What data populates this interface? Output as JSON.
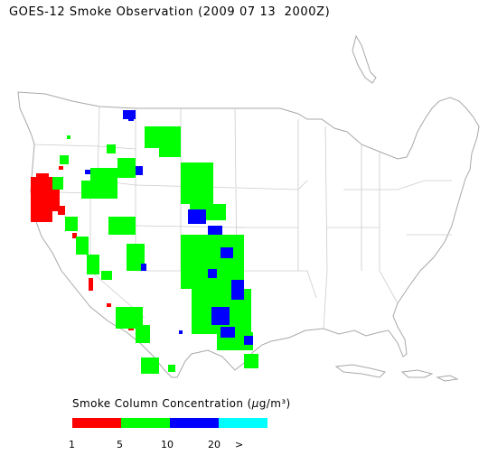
{
  "title": "GOES-12 Smoke Observation (2009 07 13  2000Z)",
  "legend": {
    "title_prefix": "Smoke Column Concentration (",
    "title_mu": "μ",
    "title_suffix": "g/m³)",
    "bins": [
      {
        "color": "#ff0000"
      },
      {
        "color": "#00ff00"
      },
      {
        "color": "#0000ff"
      },
      {
        "color": "#00ffff"
      }
    ],
    "tick_labels": [
      "1",
      "5",
      "10",
      "20",
      ">"
    ]
  },
  "colors": {
    "outline": "#a8a8a8",
    "state_lines": "#cccccc",
    "smoke_1_5": "#ff0000",
    "smoke_5_10": "#00ff00",
    "smoke_10_20": "#0000ff",
    "smoke_20_plus": "#00ffff"
  }
}
